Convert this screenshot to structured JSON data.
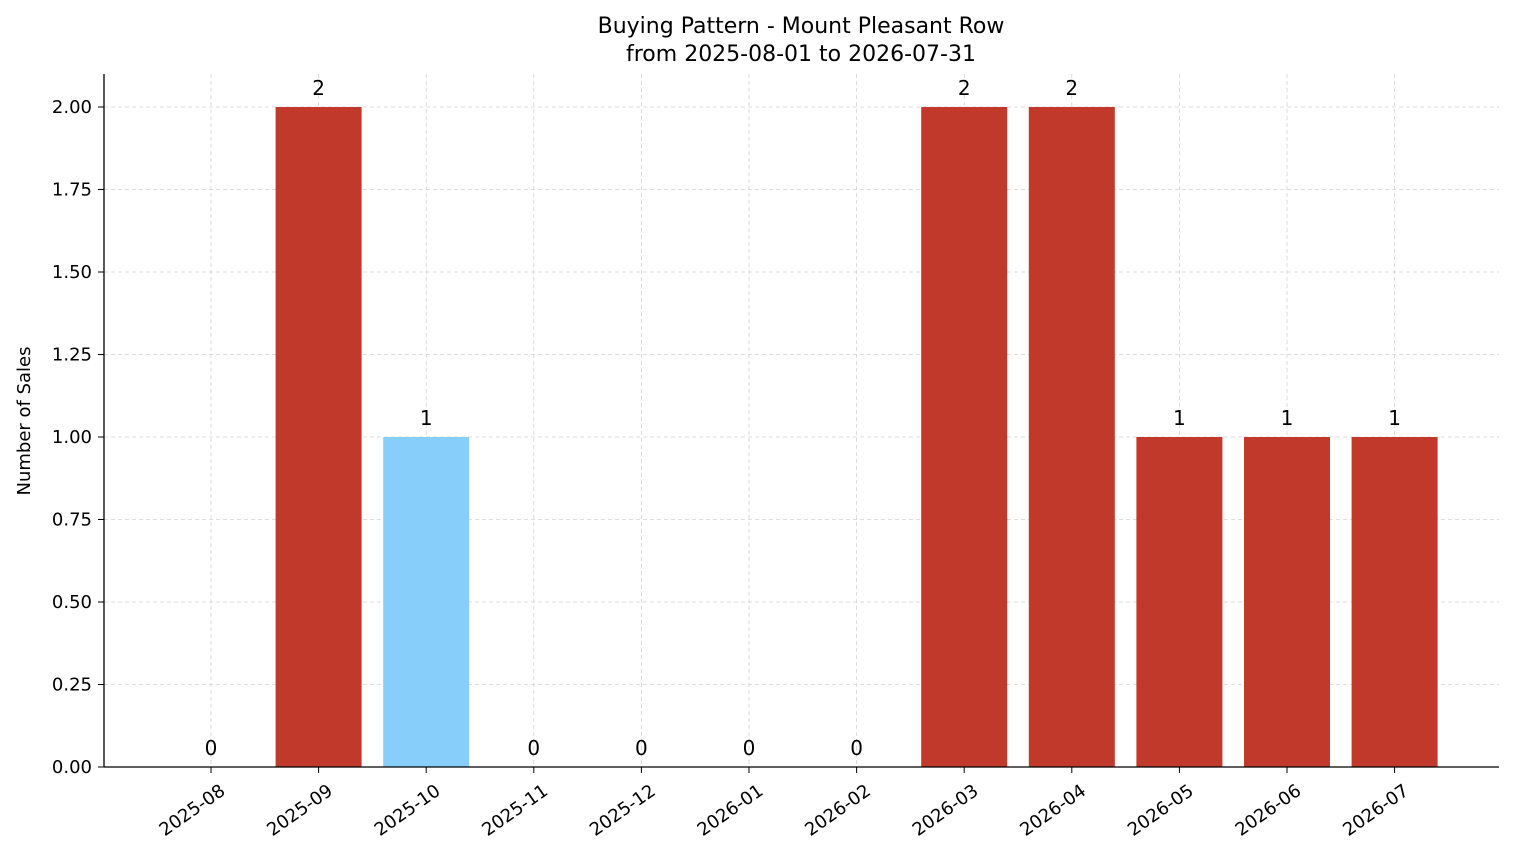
{
  "chart_data": {
    "type": "bar",
    "title": "Buying Pattern - Mount Pleasant Row",
    "subtitle": "from 2025-08-01 to 2026-07-31",
    "xlabel": "",
    "ylabel": "Number of Sales",
    "categories": [
      "2025-08",
      "2025-09",
      "2025-10",
      "2025-11",
      "2025-12",
      "2026-01",
      "2026-02",
      "2026-03",
      "2026-04",
      "2026-05",
      "2026-06",
      "2026-07"
    ],
    "values": [
      0,
      2,
      1,
      0,
      0,
      0,
      0,
      2,
      2,
      1,
      1,
      1
    ],
    "data_labels": [
      "0",
      "2",
      "1",
      "0",
      "0",
      "0",
      "0",
      "2",
      "2",
      "1",
      "1",
      "1"
    ],
    "bar_colors": [
      "#c0392b",
      "#c0392b",
      "#87cefa",
      "#c0392b",
      "#c0392b",
      "#c0392b",
      "#c0392b",
      "#c0392b",
      "#c0392b",
      "#c0392b",
      "#c0392b",
      "#c0392b"
    ],
    "ylim": [
      0,
      2.1
    ],
    "yticks": [
      0,
      0.25,
      0.5,
      0.75,
      1.0,
      1.25,
      1.5,
      1.75,
      2.0
    ],
    "ytick_labels": [
      "0.00",
      "0.25",
      "0.50",
      "0.75",
      "1.00",
      "1.25",
      "1.50",
      "1.75",
      "2.00"
    ],
    "grid": true,
    "legend": "none"
  }
}
